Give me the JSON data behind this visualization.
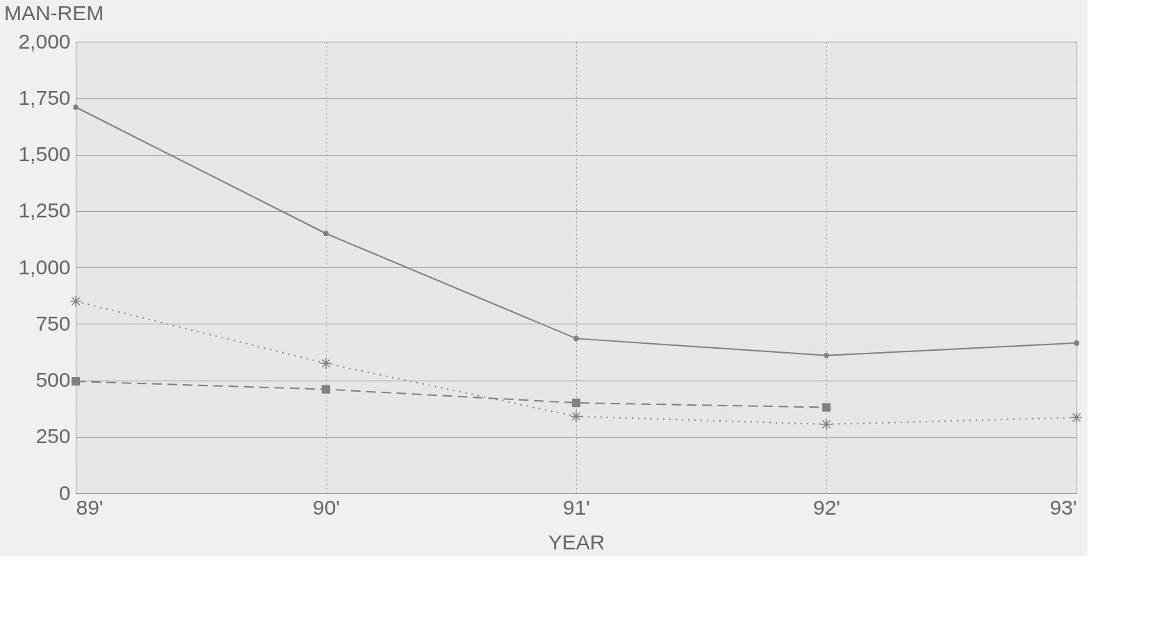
{
  "chart_data": {
    "type": "line",
    "ylabel": "MAN-REM",
    "xlabel": "YEAR",
    "categories": [
      "89'",
      "90'",
      "91'",
      "92'",
      "93'"
    ],
    "series": [
      {
        "color": "#808080",
        "values": [
          1710,
          1150,
          685,
          610,
          665
        ],
        "marker": "circle",
        "line_style": "solid"
      },
      {
        "color": "#808080",
        "values": [
          850,
          575,
          340,
          305,
          335
        ],
        "marker": "cross",
        "line_style": "dotted"
      },
      {
        "color": "#808080",
        "values": [
          495,
          460,
          400,
          380,
          null
        ],
        "marker": "square",
        "line_style": "dashed"
      }
    ],
    "ylim": [
      0,
      2000
    ],
    "yticks": [
      0,
      250,
      500,
      750,
      {
        "value": 1000,
        "label": "1,000"
      },
      {
        "value": 1250,
        "label": "1,250"
      },
      {
        "value": 1500,
        "label": "1,500"
      },
      {
        "value": 1750,
        "label": "1,750"
      },
      {
        "value": 2000,
        "label": "2,000"
      }
    ],
    "grid": true
  }
}
